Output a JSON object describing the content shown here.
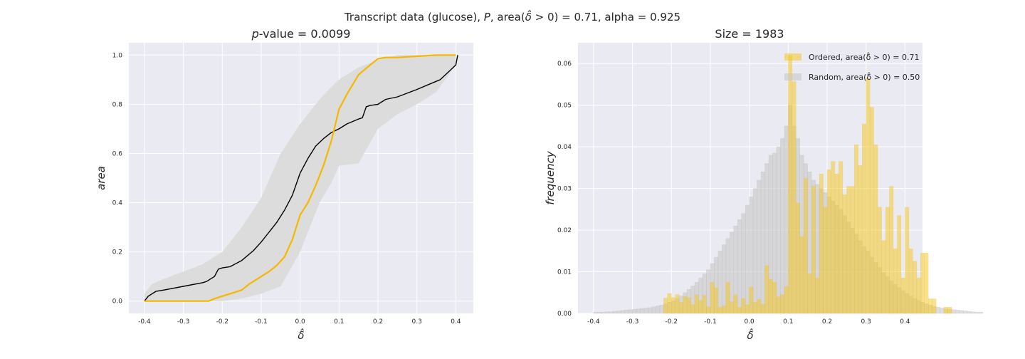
{
  "figure": {
    "suptitle": "Transcript data (glucose), P, area(δ̂ > 0) = 0.71, alpha = 0.925"
  },
  "chart_data": [
    {
      "type": "line",
      "title": "p-value = 0.0099",
      "xlabel": "δ̂",
      "ylabel": "area",
      "xlim": [
        -0.44,
        0.445
      ],
      "ylim": [
        -0.05,
        1.05
      ],
      "xticks": [
        -0.4,
        -0.3,
        -0.2,
        -0.1,
        0.0,
        0.1,
        0.2,
        0.3,
        0.4
      ],
      "xtick_labels": [
        "-0.4",
        "-0.3",
        "-0.2",
        "-0.1",
        "0.0",
        "0.1",
        "0.2",
        "0.3",
        "0.4"
      ],
      "yticks": [
        0.0,
        0.2,
        0.4,
        0.6,
        0.8,
        1.0
      ],
      "ytick_labels": [
        "0.0",
        "0.2",
        "0.4",
        "0.6",
        "0.8",
        "1.0"
      ],
      "grid": true,
      "band": {
        "color": "#dcdcdc",
        "x": [
          -0.4,
          -0.38,
          -0.35,
          -0.3,
          -0.25,
          -0.2,
          -0.15,
          -0.1,
          -0.05,
          0.0,
          0.05,
          0.08,
          0.1,
          0.15,
          0.2,
          0.25,
          0.3,
          0.35,
          0.4
        ],
        "upper": [
          0.03,
          0.07,
          0.09,
          0.12,
          0.15,
          0.2,
          0.3,
          0.42,
          0.6,
          0.72,
          0.82,
          0.87,
          0.9,
          0.95,
          0.98,
          1.0,
          1.0,
          1.0,
          1.0
        ],
        "lower": [
          0.0,
          0.0,
          0.0,
          0.0,
          0.0,
          0.0,
          0.01,
          0.03,
          0.06,
          0.2,
          0.4,
          0.48,
          0.55,
          0.56,
          0.7,
          0.76,
          0.8,
          0.85,
          0.96
        ]
      },
      "series": [
        {
          "color": "#000000",
          "x": [
            -0.4,
            -0.39,
            -0.38,
            -0.37,
            -0.35,
            -0.3,
            -0.25,
            -0.24,
            -0.23,
            -0.22,
            -0.21,
            -0.2,
            -0.18,
            -0.15,
            -0.12,
            -0.1,
            -0.08,
            -0.06,
            -0.04,
            -0.02,
            0.0,
            0.02,
            0.04,
            0.06,
            0.08,
            0.1,
            0.12,
            0.15,
            0.16,
            0.17,
            0.18,
            0.2,
            0.22,
            0.25,
            0.3,
            0.33,
            0.36,
            0.38,
            0.4,
            0.405
          ],
          "y": [
            0.0,
            0.02,
            0.03,
            0.04,
            0.045,
            0.06,
            0.075,
            0.08,
            0.09,
            0.1,
            0.13,
            0.135,
            0.14,
            0.165,
            0.205,
            0.24,
            0.28,
            0.32,
            0.37,
            0.43,
            0.52,
            0.58,
            0.63,
            0.66,
            0.685,
            0.7,
            0.72,
            0.74,
            0.745,
            0.79,
            0.795,
            0.8,
            0.82,
            0.83,
            0.86,
            0.88,
            0.9,
            0.93,
            0.96,
            1.0
          ]
        },
        {
          "color": "#f5b800",
          "x": [
            -0.4,
            -0.3,
            -0.235,
            -0.22,
            -0.2,
            -0.18,
            -0.15,
            -0.13,
            -0.12,
            -0.1,
            -0.08,
            -0.06,
            -0.04,
            -0.02,
            -0.01,
            0.0,
            0.02,
            0.04,
            0.06,
            0.08,
            0.1,
            0.12,
            0.15,
            0.18,
            0.2,
            0.22,
            0.25,
            0.3,
            0.35,
            0.4
          ],
          "y": [
            0.0,
            0.0,
            0.0,
            0.01,
            0.02,
            0.03,
            0.045,
            0.07,
            0.08,
            0.1,
            0.12,
            0.145,
            0.18,
            0.25,
            0.3,
            0.35,
            0.4,
            0.47,
            0.55,
            0.65,
            0.78,
            0.84,
            0.92,
            0.96,
            0.985,
            0.99,
            0.99,
            0.995,
            1.0,
            1.0
          ]
        }
      ]
    },
    {
      "type": "histogram",
      "title": "Size = 1983",
      "xlabel": "δ̂",
      "ylabel": "frequency",
      "xlim": [
        -0.44,
        0.445
      ],
      "ylim": [
        0.0,
        0.065
      ],
      "xticks": [
        -0.4,
        -0.3,
        -0.2,
        -0.1,
        0.0,
        0.1,
        0.2,
        0.3,
        0.4
      ],
      "xtick_labels": [
        "-0.4",
        "-0.3",
        "-0.2",
        "-0.1",
        "0.0",
        "0.1",
        "0.2",
        "0.3",
        "0.4"
      ],
      "yticks": [
        0.0,
        0.01,
        0.02,
        0.03,
        0.04,
        0.05,
        0.06
      ],
      "ytick_labels": [
        "0.00",
        "0.01",
        "0.02",
        "0.03",
        "0.04",
        "0.05",
        "0.06"
      ],
      "grid": true,
      "legend_position": "upper-right",
      "bin_start": -0.4,
      "bin_width": 0.01,
      "series": [
        {
          "name": "Random, area(δ̂ > 0) = 0.50",
          "color": "#c8c8c8",
          "values": [
            0.0003,
            0.0003,
            0.0003,
            0.0004,
            0.0004,
            0.0005,
            0.0006,
            0.0007,
            0.0008,
            0.0009,
            0.001,
            0.0011,
            0.0012,
            0.0013,
            0.0014,
            0.0016,
            0.0018,
            0.002,
            0.0023,
            0.0027,
            0.003,
            0.0035,
            0.0042,
            0.005,
            0.0058,
            0.0066,
            0.0075,
            0.0085,
            0.0095,
            0.0105,
            0.012,
            0.0135,
            0.015,
            0.0165,
            0.018,
            0.0195,
            0.021,
            0.0225,
            0.024,
            0.026,
            0.028,
            0.03,
            0.032,
            0.034,
            0.036,
            0.038,
            0.0385,
            0.04,
            0.042,
            0.045,
            0.05,
            0.045,
            0.042,
            0.038,
            0.036,
            0.034,
            0.032,
            0.031,
            0.03,
            0.029,
            0.028,
            0.027,
            0.026,
            0.025,
            0.0235,
            0.022,
            0.0205,
            0.019,
            0.0175,
            0.016,
            0.015,
            0.0135,
            0.0122,
            0.011,
            0.0098,
            0.0088,
            0.0078,
            0.007,
            0.0062,
            0.0055,
            0.0048,
            0.0042,
            0.0036,
            0.0031,
            0.0027,
            0.0023,
            0.002,
            0.0017,
            0.0015,
            0.0013,
            0.0011,
            0.001,
            0.0009,
            0.0008,
            0.0007,
            0.0006,
            0.0005,
            0.0004,
            0.0003,
            0.0003
          ]
        },
        {
          "name": "Ordered, area(δ̂ > 0) = 0.71",
          "color": "#f5c518",
          "values": [
            0,
            0,
            0,
            0,
            0,
            0,
            0,
            0,
            0,
            0,
            0,
            0,
            0,
            0,
            0,
            0,
            0,
            0,
            0.0037,
            0.0048,
            0.0038,
            0.0045,
            0.0027,
            0.0041,
            0.0038,
            0.0021,
            0.0045,
            0.0031,
            0.0044,
            0.0016,
            0.0075,
            0.0062,
            0.0015,
            0.0018,
            0.0075,
            0.0028,
            0.0045,
            0.0015,
            0.0036,
            0.0021,
            0.0064,
            0.0027,
            0.0034,
            0.0022,
            0.0115,
            0.0082,
            0.0075,
            0.004,
            0.0045,
            0.0065,
            0.062,
            0.0557,
            0.0265,
            0.0185,
            0.0325,
            0.0095,
            0.0306,
            0.0085,
            0.0335,
            0.0255,
            0.0345,
            0.0365,
            0.0335,
            0.0365,
            0.0285,
            0.0305,
            0.0305,
            0.0405,
            0.0355,
            0.0455,
            0.0565,
            0.0495,
            0.0405,
            0.0255,
            0.0175,
            0.0255,
            0.0305,
            0.0155,
            0.0235,
            0.0085,
            0.0255,
            0.0155,
            0.0125,
            0.0085,
            0.0145,
            0.0145,
            0.0035,
            0.0035,
            0.0,
            0.0,
            0.0015,
            0.0015,
            0.0,
            0.0,
            0.0,
            0.0,
            0.0,
            0.0,
            0.0,
            0.0
          ]
        }
      ]
    }
  ]
}
